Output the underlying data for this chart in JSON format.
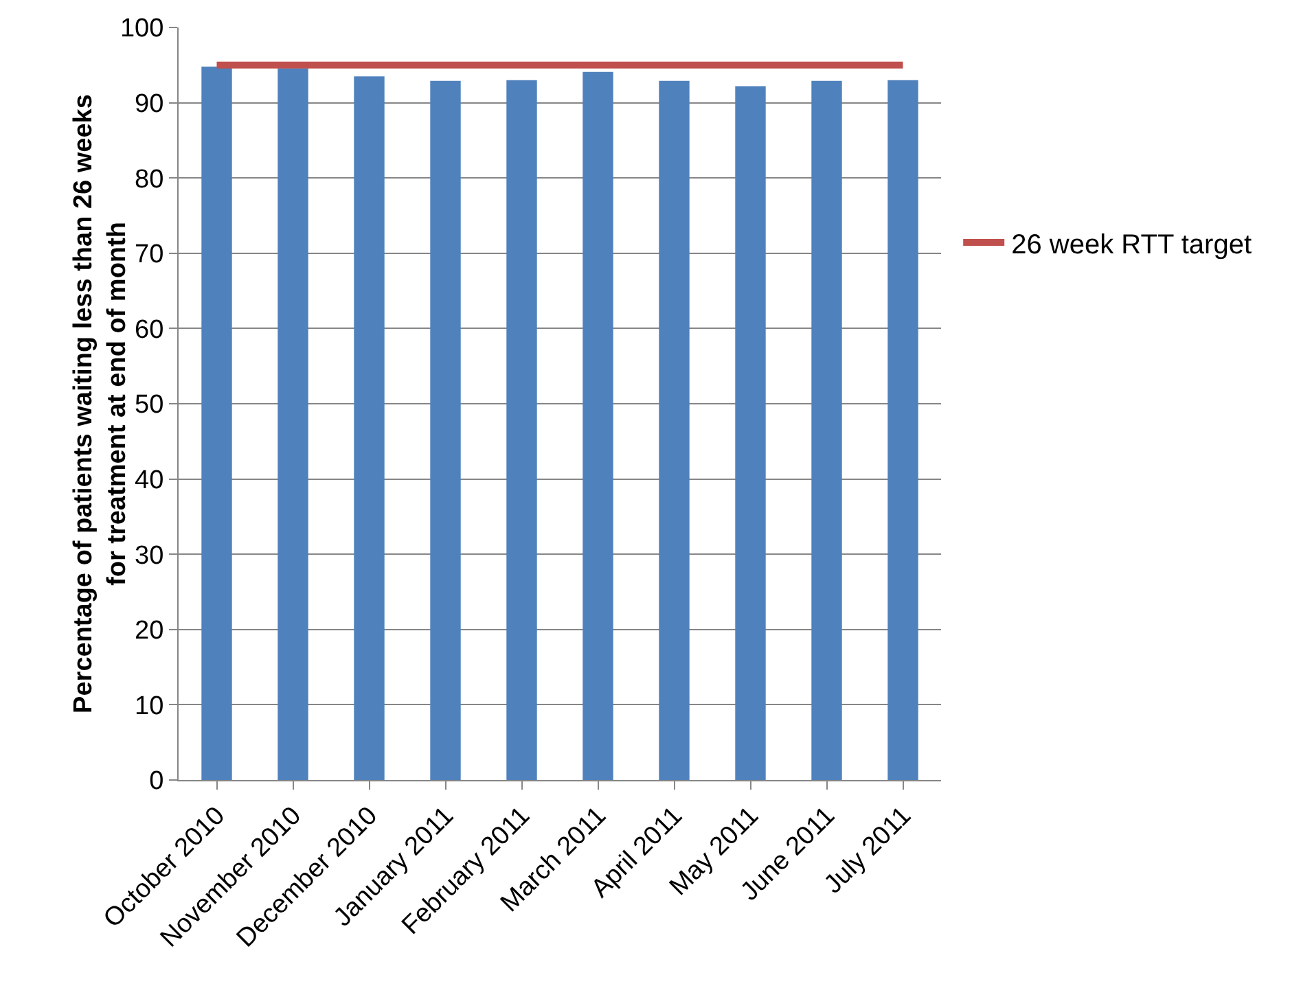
{
  "chart_data": {
    "type": "bar",
    "ylabel": "Percentage of patients waiting less than 26 weeks\nfor treatment at end of month",
    "categories": [
      "October 2010",
      "November 2010",
      "December 2010",
      "January 2011",
      "February 2011",
      "March 2011",
      "April 2011",
      "May 2011",
      "June 2011",
      "July 2011"
    ],
    "series": [
      {
        "color": "#4f81bd",
        "values": [
          94.8,
          94.6,
          93.5,
          92.9,
          93.0,
          94.1,
          92.9,
          92.2,
          92.9,
          93.0
        ]
      },
      {
        "type": "line",
        "name": "26 week RTT target",
        "color": "#c0504d",
        "values": [
          95,
          95,
          95,
          95,
          95,
          95,
          95,
          95,
          95,
          95
        ]
      }
    ],
    "ylim": [
      0,
      100
    ],
    "yticks": [
      0,
      10,
      20,
      30,
      40,
      50,
      60,
      70,
      80,
      90,
      100
    ],
    "grid": "y",
    "legend": "right",
    "marker": "none"
  }
}
